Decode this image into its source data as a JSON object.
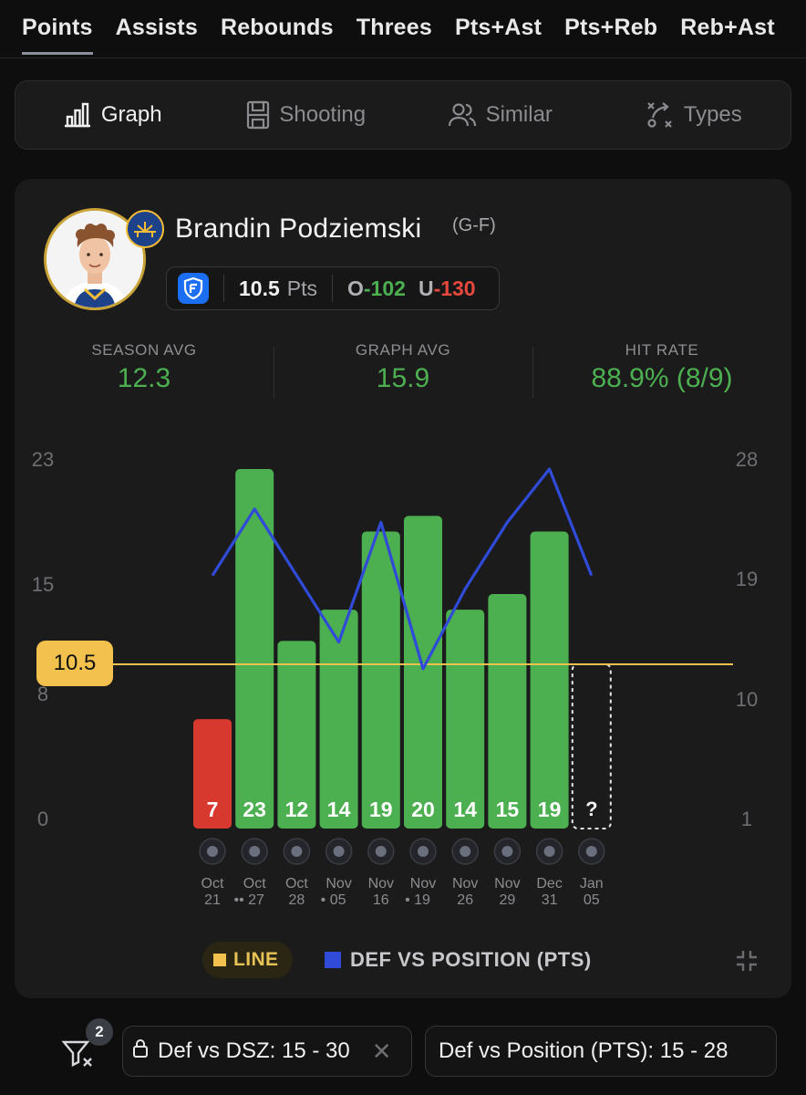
{
  "stat_tabs": [
    "Points",
    "Assists",
    "Rebounds",
    "Threes",
    "Pts+Ast",
    "Pts+Reb",
    "Reb+Ast"
  ],
  "view_tabs": [
    {
      "label": "Graph",
      "icon": "bar-chart-icon"
    },
    {
      "label": "Shooting",
      "icon": "court-icon"
    },
    {
      "label": "Similar",
      "icon": "users-icon"
    },
    {
      "label": "Types",
      "icon": "play-diagram-icon"
    }
  ],
  "player": {
    "name": "Brandin Podziemski",
    "position": "(G-F)",
    "team_logo": "golden-state-warriors-logo"
  },
  "line": {
    "book_icon": "fanduel-shield-icon",
    "value": "10.5",
    "unit": "Pts",
    "over_label": "O",
    "over_odds": "-102",
    "under_label": "U",
    "under_odds": "-130"
  },
  "stats": [
    {
      "label": "SEASON AVG",
      "value": "12.3"
    },
    {
      "label": "GRAPH AVG",
      "value": "15.9"
    },
    {
      "label": "HIT RATE",
      "value": "88.9% (8/9)"
    }
  ],
  "colors": {
    "hit": "#4caf50",
    "miss": "#d8392f",
    "line": "#f2c14e",
    "def": "#2f4bd8"
  },
  "chart_data": {
    "type": "bar",
    "line_value": 10.5,
    "line_label": "10.5",
    "y_left_ticks": [
      "23",
      "15",
      "8",
      "0"
    ],
    "y_left_range": [
      0,
      23
    ],
    "y_right_ticks": [
      "28",
      "19",
      "10",
      "1"
    ],
    "y_right_range": [
      1,
      28
    ],
    "categories": [
      {
        "month": "Oct",
        "day": "21",
        "dots": 0,
        "team": "lakers-logo"
      },
      {
        "month": "Oct",
        "day": "27",
        "dots": 2,
        "team": "grizzlies-logo"
      },
      {
        "month": "Oct",
        "day": "28",
        "dots": 0,
        "team": "clippers-logo"
      },
      {
        "month": "Nov",
        "day": "05",
        "dots": 1,
        "team": "kings-logo"
      },
      {
        "month": "Nov",
        "day": "16",
        "dots": 0,
        "team": "pelicans-logo"
      },
      {
        "month": "Nov",
        "day": "19",
        "dots": 1,
        "team": "heat-logo"
      },
      {
        "month": "Nov",
        "day": "26",
        "dots": 0,
        "team": "rockets-logo"
      },
      {
        "month": "Nov",
        "day": "29",
        "dots": 0,
        "team": "pelicans-logo"
      },
      {
        "month": "Dec",
        "day": "31",
        "dots": 0,
        "team": "hornets-logo"
      },
      {
        "month": "Jan",
        "day": "05",
        "dots": 0,
        "team": "clippers-logo"
      }
    ],
    "series": [
      {
        "name": "Points",
        "values": [
          7,
          23,
          12,
          14,
          19,
          20,
          14,
          15,
          19,
          null
        ]
      },
      {
        "name": "DEF VS POSITION (PTS)",
        "values": [
          20,
          25,
          20,
          15,
          24,
          13,
          19,
          24,
          28,
          20
        ]
      }
    ],
    "pending_label": "?"
  },
  "legend": {
    "line_label": "LINE",
    "def_label": "DEF VS POSITION (PTS)",
    "collapse_icon": "collapse-icon"
  },
  "filters": {
    "icon": "filter-clear-icon",
    "count": "2",
    "chips": [
      {
        "label": "Def vs DSZ: 15 - 30",
        "icon": "lock-icon",
        "close": "✕"
      },
      {
        "label": "Def vs Position (PTS): 15 - 28"
      }
    ]
  }
}
